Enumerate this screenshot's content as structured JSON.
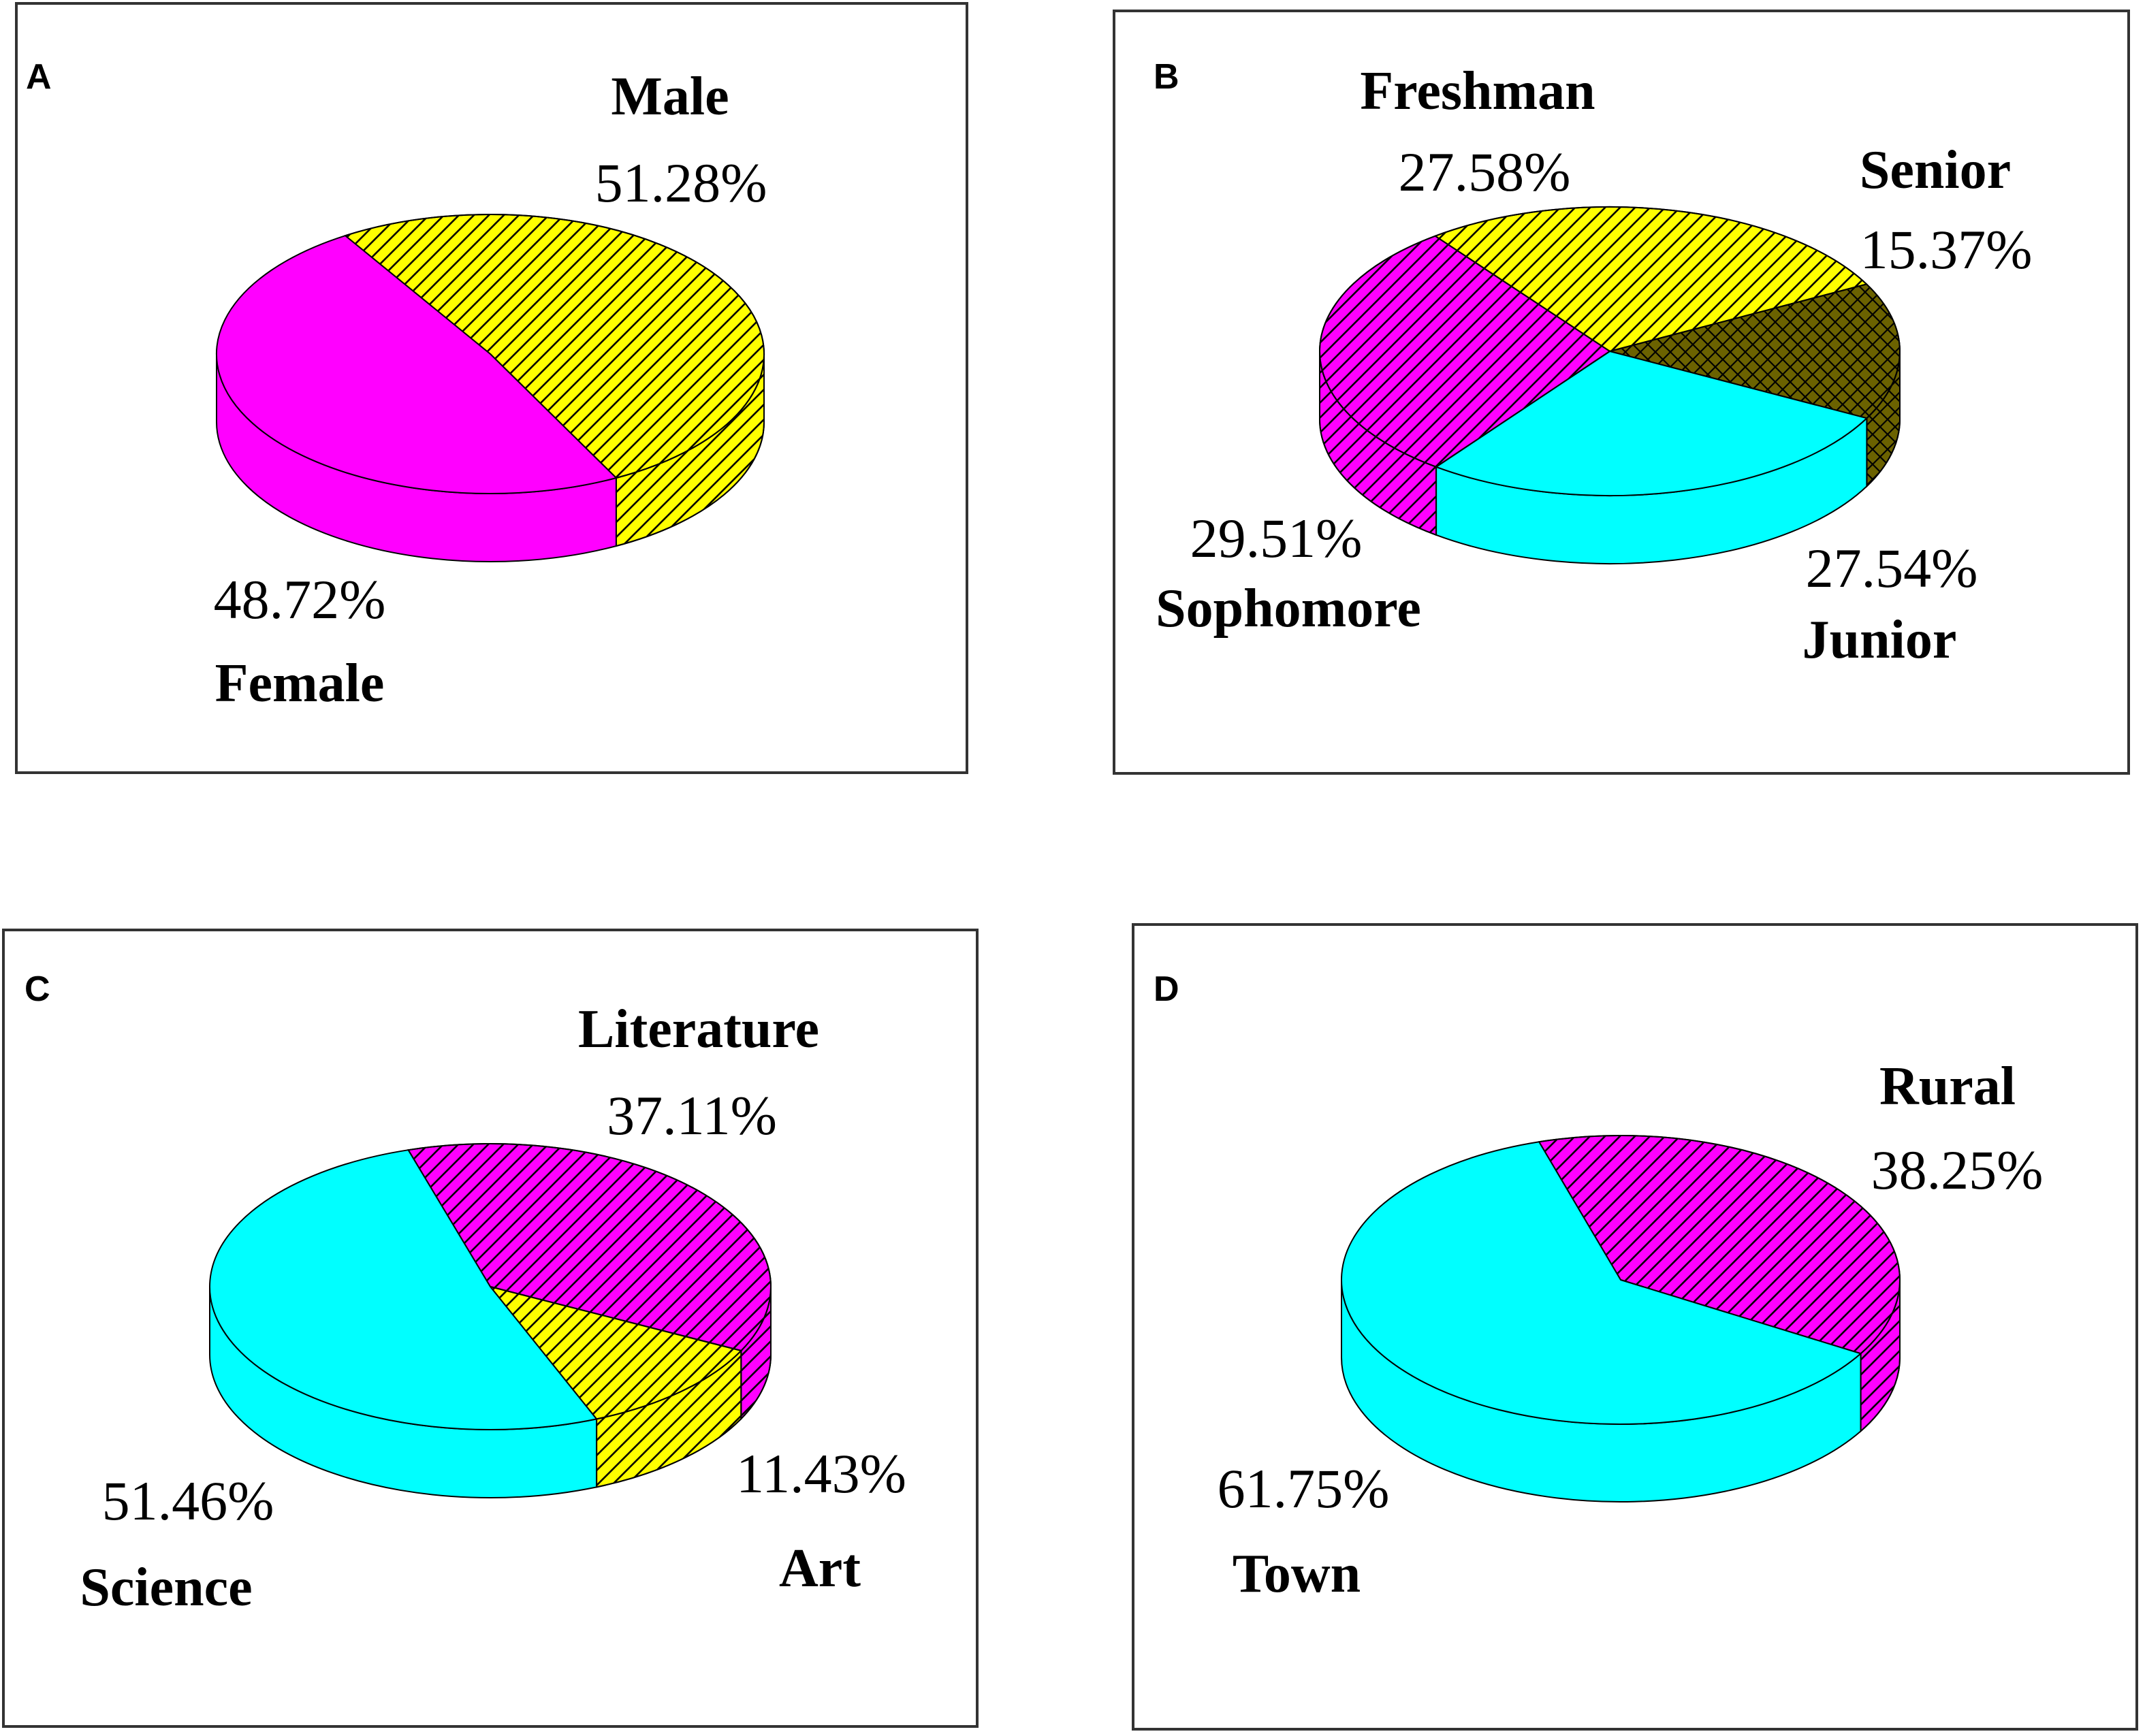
{
  "chart_data": [
    {
      "type": "pie",
      "panel": "A",
      "slices": [
        {
          "label": "Male",
          "value": 51.28,
          "value_text": "51.28%",
          "color": "#FFFF00",
          "pattern": "hatch"
        },
        {
          "label": "Female",
          "value": 48.72,
          "value_text": "48.72%",
          "color": "#FF00FF",
          "pattern": "solid"
        }
      ]
    },
    {
      "type": "pie",
      "panel": "B",
      "slices": [
        {
          "label": "Freshman",
          "value": 27.58,
          "value_text": "27.58%",
          "color": "#FFFF00",
          "pattern": "hatch"
        },
        {
          "label": "Senior",
          "value": 15.37,
          "value_text": "15.37%",
          "color": "#6B6200",
          "pattern": "crosshatch"
        },
        {
          "label": "Junior",
          "value": 27.54,
          "value_text": "27.54%",
          "color": "#00FFFF",
          "pattern": "solid"
        },
        {
          "label": "Sophomore",
          "value": 29.51,
          "value_text": "29.51%",
          "color": "#FF00FF",
          "pattern": "hatch"
        }
      ]
    },
    {
      "type": "pie",
      "panel": "C",
      "slices": [
        {
          "label": "Literature",
          "value": 37.11,
          "value_text": "37.11%",
          "color": "#FF00FF",
          "pattern": "hatch"
        },
        {
          "label": "Art",
          "value": 11.43,
          "value_text": "11.43%",
          "color": "#FFFF00",
          "pattern": "hatch"
        },
        {
          "label": "Science",
          "value": 51.46,
          "value_text": "51.46%",
          "color": "#00FFFF",
          "pattern": "solid"
        }
      ]
    },
    {
      "type": "pie",
      "panel": "D",
      "slices": [
        {
          "label": "Rural",
          "value": 38.25,
          "value_text": "38.25%",
          "color": "#FF00FF",
          "pattern": "hatch"
        },
        {
          "label": "Town",
          "value": 61.75,
          "value_text": "61.75%",
          "color": "#00FFFF",
          "pattern": "solid"
        }
      ]
    }
  ]
}
